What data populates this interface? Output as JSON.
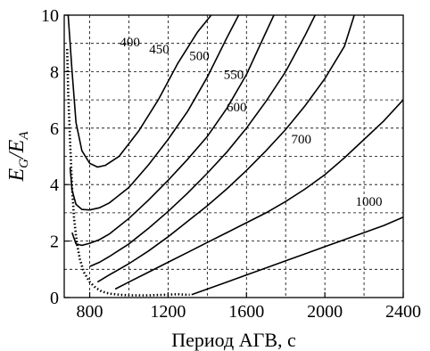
{
  "chart_data": {
    "type": "line",
    "title": "",
    "xlabel": "Период АГВ, с",
    "ylabel": {
      "main": "E",
      "sub1": "G",
      "slash": "/",
      "main2": "E",
      "sub2": "A"
    },
    "xlim": [
      670,
      2400
    ],
    "ylim": [
      0,
      10
    ],
    "xticks": [
      800,
      1200,
      1600,
      2000,
      2400
    ],
    "yticks": [
      0,
      2,
      4,
      6,
      8,
      10
    ],
    "xgrid": [
      800,
      1000,
      1200,
      1400,
      1600,
      1800,
      2000,
      2200
    ],
    "ygrid": [
      1,
      2,
      3,
      4,
      5,
      6,
      7,
      8,
      9
    ],
    "grid": true,
    "series": [
      {
        "name": "400",
        "label_at": [
          1005,
          8.9
        ],
        "x": [
          690,
          710,
          730,
          760,
          800,
          840,
          880,
          950,
          1050,
          1150,
          1250,
          1350,
          1420
        ],
        "y": [
          10.0,
          8.0,
          6.2,
          5.2,
          4.75,
          4.62,
          4.68,
          5.0,
          5.9,
          7.0,
          8.3,
          9.4,
          10.0
        ]
      },
      {
        "name": "450",
        "label_at": [
          1155,
          8.65
        ],
        "x": [
          700,
          710,
          730,
          760,
          800,
          850,
          900,
          1000,
          1100,
          1200,
          1300,
          1400,
          1500,
          1560
        ],
        "y": [
          4.6,
          3.8,
          3.3,
          3.12,
          3.1,
          3.18,
          3.35,
          3.9,
          4.7,
          5.6,
          6.6,
          7.8,
          9.2,
          10.0
        ]
      },
      {
        "name": "500",
        "label_at": [
          1360,
          8.4
        ],
        "x": [
          710,
          730,
          760,
          800,
          850,
          900,
          1000,
          1100,
          1200,
          1300,
          1400,
          1500,
          1600,
          1700,
          1740
        ],
        "y": [
          2.3,
          1.9,
          1.85,
          1.92,
          2.05,
          2.25,
          2.8,
          3.45,
          4.15,
          4.9,
          5.7,
          6.7,
          7.9,
          9.4,
          10.0
        ]
      },
      {
        "name": "550",
        "label_at": [
          1535,
          7.75
        ],
        "x": [
          800,
          850,
          900,
          1000,
          1100,
          1200,
          1300,
          1400,
          1500,
          1600,
          1700,
          1800,
          1900,
          1950
        ],
        "y": [
          1.1,
          1.25,
          1.45,
          1.9,
          2.45,
          3.05,
          3.7,
          4.4,
          5.15,
          6.0,
          6.95,
          8.0,
          9.3,
          10.0
        ]
      },
      {
        "name": "600",
        "label_at": [
          1550,
          6.6
        ],
        "x": [
          840,
          900,
          1000,
          1100,
          1200,
          1300,
          1400,
          1500,
          1600,
          1700,
          1800,
          1900,
          2000,
          2100,
          2150
        ],
        "y": [
          0.55,
          0.8,
          1.2,
          1.65,
          2.15,
          2.7,
          3.25,
          3.85,
          4.5,
          5.2,
          5.95,
          6.8,
          7.75,
          8.9,
          10.0
        ]
      },
      {
        "name": "700",
        "label_at": [
          1880,
          5.45
        ],
        "x": [
          930,
          1000,
          1100,
          1200,
          1300,
          1400,
          1500,
          1600,
          1700,
          1800,
          1900,
          2000,
          2100,
          2200,
          2300,
          2400
        ],
        "y": [
          0.3,
          0.55,
          0.9,
          1.25,
          1.6,
          1.95,
          2.3,
          2.65,
          3.0,
          3.4,
          3.85,
          4.35,
          4.95,
          5.6,
          6.25,
          7.0
        ]
      },
      {
        "name": "1000",
        "label_at": [
          2225,
          3.25
        ],
        "x": [
          1320,
          1400,
          1500,
          1600,
          1700,
          1800,
          1900,
          2000,
          2100,
          2200,
          2300,
          2400
        ],
        "y": [
          0.1,
          0.3,
          0.55,
          0.8,
          1.05,
          1.3,
          1.55,
          1.8,
          2.05,
          2.3,
          2.55,
          2.85
        ]
      }
    ],
    "boundary": {
      "style": "dotted",
      "x": [
        685,
        690,
        700,
        710,
        720,
        735,
        750,
        770,
        800,
        830,
        860,
        900,
        950,
        1000,
        1050,
        1100,
        1150,
        1200,
        1250,
        1280,
        1310
      ],
      "y": [
        8.8,
        7.3,
        5.5,
        3.9,
        2.8,
        1.9,
        1.35,
        0.9,
        0.55,
        0.35,
        0.22,
        0.14,
        0.1,
        0.08,
        0.08,
        0.08,
        0.09,
        0.1,
        0.12,
        0.1,
        0.1
      ]
    }
  }
}
